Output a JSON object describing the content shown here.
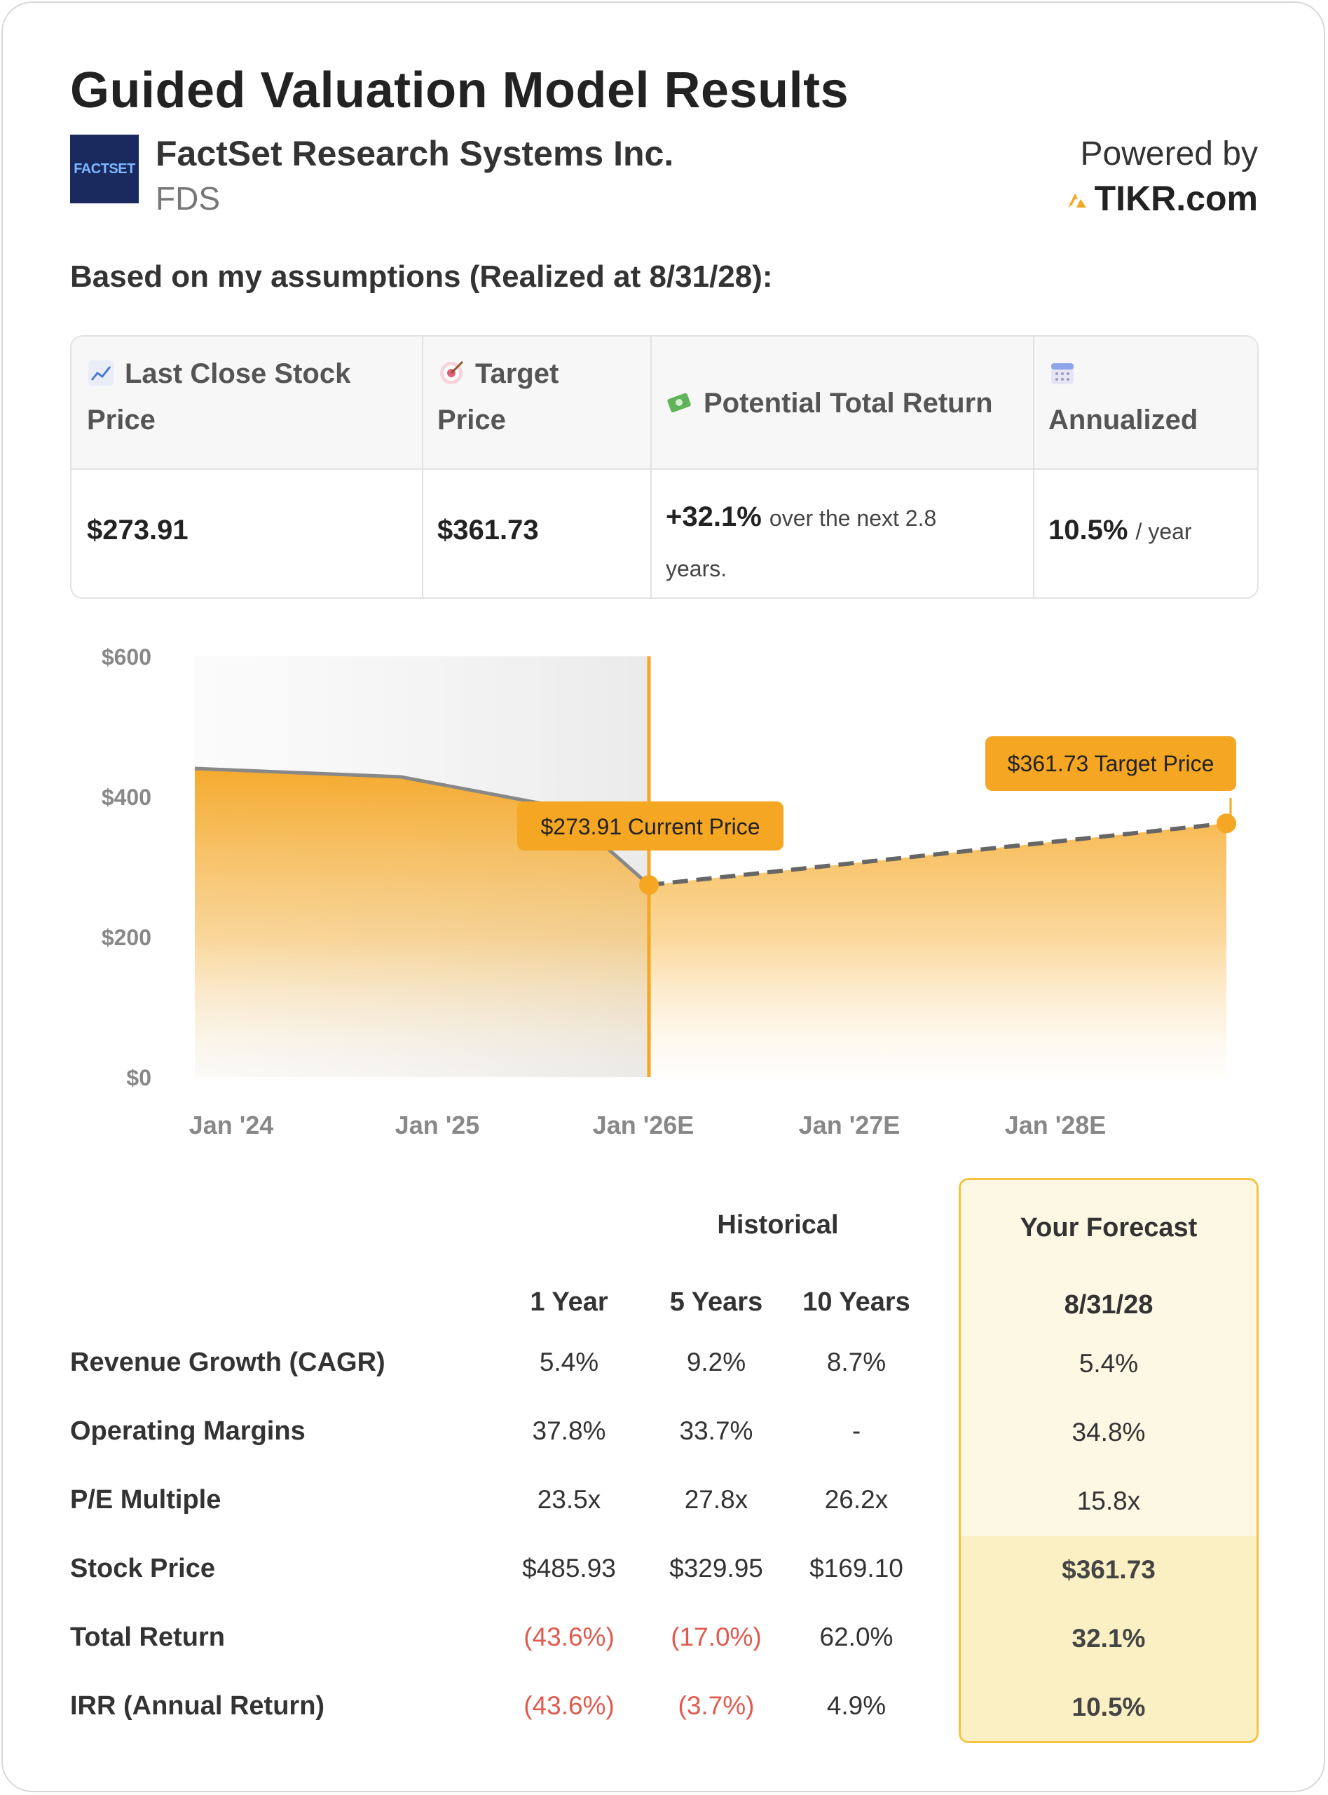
{
  "title": "Guided Valuation Model Results",
  "company": {
    "logo_text": "FACTSET",
    "name": "FactSet Research Systems Inc.",
    "ticker": "FDS"
  },
  "brand": {
    "powered_by": "Powered by",
    "site": "TIKR.com"
  },
  "subheading": "Based on my assumptions (Realized at 8/31/28):",
  "summary": {
    "headers": {
      "last_close": "Last Close Stock Price",
      "target": "Target Price",
      "return": "Potential Total Return",
      "annualized": "Annualized"
    },
    "icons": [
      "chart-up-icon",
      "target-icon",
      "money-icon",
      "calendar-icon"
    ],
    "last_close_value": "$273.91",
    "target_value": "$361.73",
    "return_value": "+32.1%",
    "return_suffix_1": "over the next 2.8",
    "return_suffix_2": "years.",
    "annualized_value": "10.5%",
    "annualized_suffix": "/ year"
  },
  "chart_data": {
    "type": "area",
    "y_ticks": [
      "$600",
      "$400",
      "$200",
      "$0"
    ],
    "x_ticks": [
      "Jan '24",
      "Jan '25",
      "Jan '26E",
      "Jan '27E",
      "Jan '28E"
    ],
    "ylim": [
      0,
      600
    ],
    "historical": [
      {
        "x": "Jan '24",
        "y": 440
      },
      {
        "x": "Jan '25",
        "y": 428
      },
      {
        "x": "Nov '25",
        "y": 385
      },
      {
        "x": "Dec '25",
        "y": 273.91
      }
    ],
    "forecast": [
      {
        "x": "Dec '25",
        "y": 273.91
      },
      {
        "x": "Aug '28",
        "y": 361.73
      }
    ],
    "current_label": "$273.91 Current Price",
    "target_label": "$361.73 Target Price",
    "colors": {
      "accent": "#f5a623",
      "line": "#888888",
      "dash": "#666666"
    }
  },
  "metrics": {
    "historical_header": "Historical",
    "forecast_header": "Your Forecast",
    "columns": [
      "1 Year",
      "5 Years",
      "10 Years"
    ],
    "forecast_date": "8/31/28",
    "rows": [
      {
        "label": "Revenue Growth (CAGR)",
        "values": [
          "5.4%",
          "9.2%",
          "8.7%"
        ],
        "neg": [
          false,
          false,
          false
        ],
        "forecast": "5.4%"
      },
      {
        "label": "Operating Margins",
        "values": [
          "37.8%",
          "33.7%",
          "-"
        ],
        "neg": [
          false,
          false,
          false
        ],
        "forecast": "34.8%"
      },
      {
        "label": "P/E Multiple",
        "values": [
          "23.5x",
          "27.8x",
          "26.2x"
        ],
        "neg": [
          false,
          false,
          false
        ],
        "forecast": "15.8x"
      },
      {
        "label": "Stock Price",
        "values": [
          "$485.93",
          "$329.95",
          "$169.10"
        ],
        "neg": [
          false,
          false,
          false
        ],
        "forecast": "$361.73"
      },
      {
        "label": "Total Return",
        "values": [
          "(43.6%)",
          "(17.0%)",
          "62.0%"
        ],
        "neg": [
          true,
          true,
          false
        ],
        "forecast": "32.1%"
      },
      {
        "label": "IRR (Annual Return)",
        "values": [
          "(43.6%)",
          "(3.7%)",
          "4.9%"
        ],
        "neg": [
          true,
          true,
          false
        ],
        "forecast": "10.5%"
      }
    ]
  }
}
